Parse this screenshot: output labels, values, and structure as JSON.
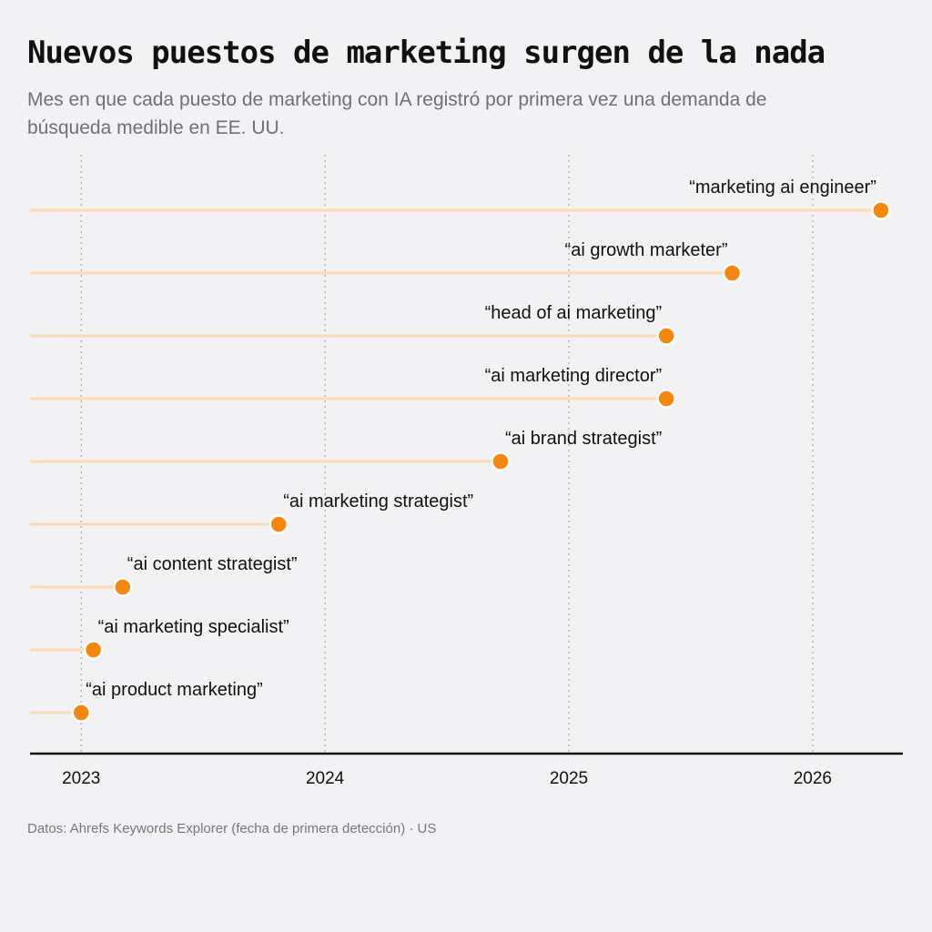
{
  "title": "Nuevos puestos de marketing surgen de la nada",
  "subtitle": "Mes en que cada puesto de marketing con IA registró por primera vez una demanda de búsqueda medible en EE. UU.",
  "footer": "Datos: Ahrefs Keywords Explorer (fecha de primera detección) · US",
  "colors": {
    "dot": "#f5870f",
    "stem": "#fbd9b4",
    "axis": "#111111",
    "grid": "#9a9a9a"
  },
  "chart_data": {
    "type": "lollipop",
    "x_ticks": [
      "2023",
      "2024",
      "2025",
      "2026"
    ],
    "xlim": [
      2022.79,
      2026.37
    ],
    "items": [
      {
        "label": "“marketing ai engineer”",
        "first_seen": 2026.28
      },
      {
        "label": "“ai growth marketer”",
        "first_seen": 2025.67
      },
      {
        "label": "“head of ai marketing”",
        "first_seen": 2025.4
      },
      {
        "label": "“ai marketing director”",
        "first_seen": 2025.4
      },
      {
        "label": "“ai brand strategist”",
        "first_seen": 2024.72
      },
      {
        "label": "“ai marketing strategist”",
        "first_seen": 2023.81
      },
      {
        "label": "“ai content strategist”",
        "first_seen": 2023.17
      },
      {
        "label": "“ai marketing specialist”",
        "first_seen": 2023.05
      },
      {
        "label": "“ai product marketing”",
        "first_seen": 2023.0
      }
    ]
  }
}
